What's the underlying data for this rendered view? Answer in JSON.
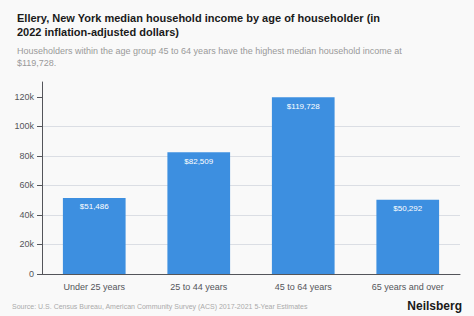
{
  "chart_data": {
    "type": "bar",
    "title": "Ellery, New York median household income by age of householder (in\n2022 inflation-adjusted dollars)",
    "subtitle": "Householders within the age group 45 to 64 years have the highest median household income at\n$119,728.",
    "categories": [
      "Under 25 years",
      "25 to 44 years",
      "45 to 64 years",
      "65 years and over"
    ],
    "values": [
      51486,
      82509,
      119728,
      50292
    ],
    "value_labels": [
      "$51,486",
      "$82,509",
      "$119,728",
      "$50,292"
    ],
    "data_labels": true,
    "color": "#3d8fe0",
    "ylim": [
      0,
      130000
    ],
    "yticks": [
      0,
      {
        "value": 20000,
        "label": "20k"
      },
      {
        "value": 40000,
        "label": "40k"
      },
      {
        "value": 60000,
        "label": "60k"
      },
      {
        "value": 80000,
        "label": "80k"
      },
      {
        "value": 100000,
        "label": "100k"
      },
      {
        "value": 120000,
        "label": "120k"
      }
    ],
    "grid": true,
    "annotations": [
      "Source: U.S. Census Bureau, American Community Survey (ACS) 2017-2021 5-Year Estimates",
      "Neilsberg"
    ]
  }
}
